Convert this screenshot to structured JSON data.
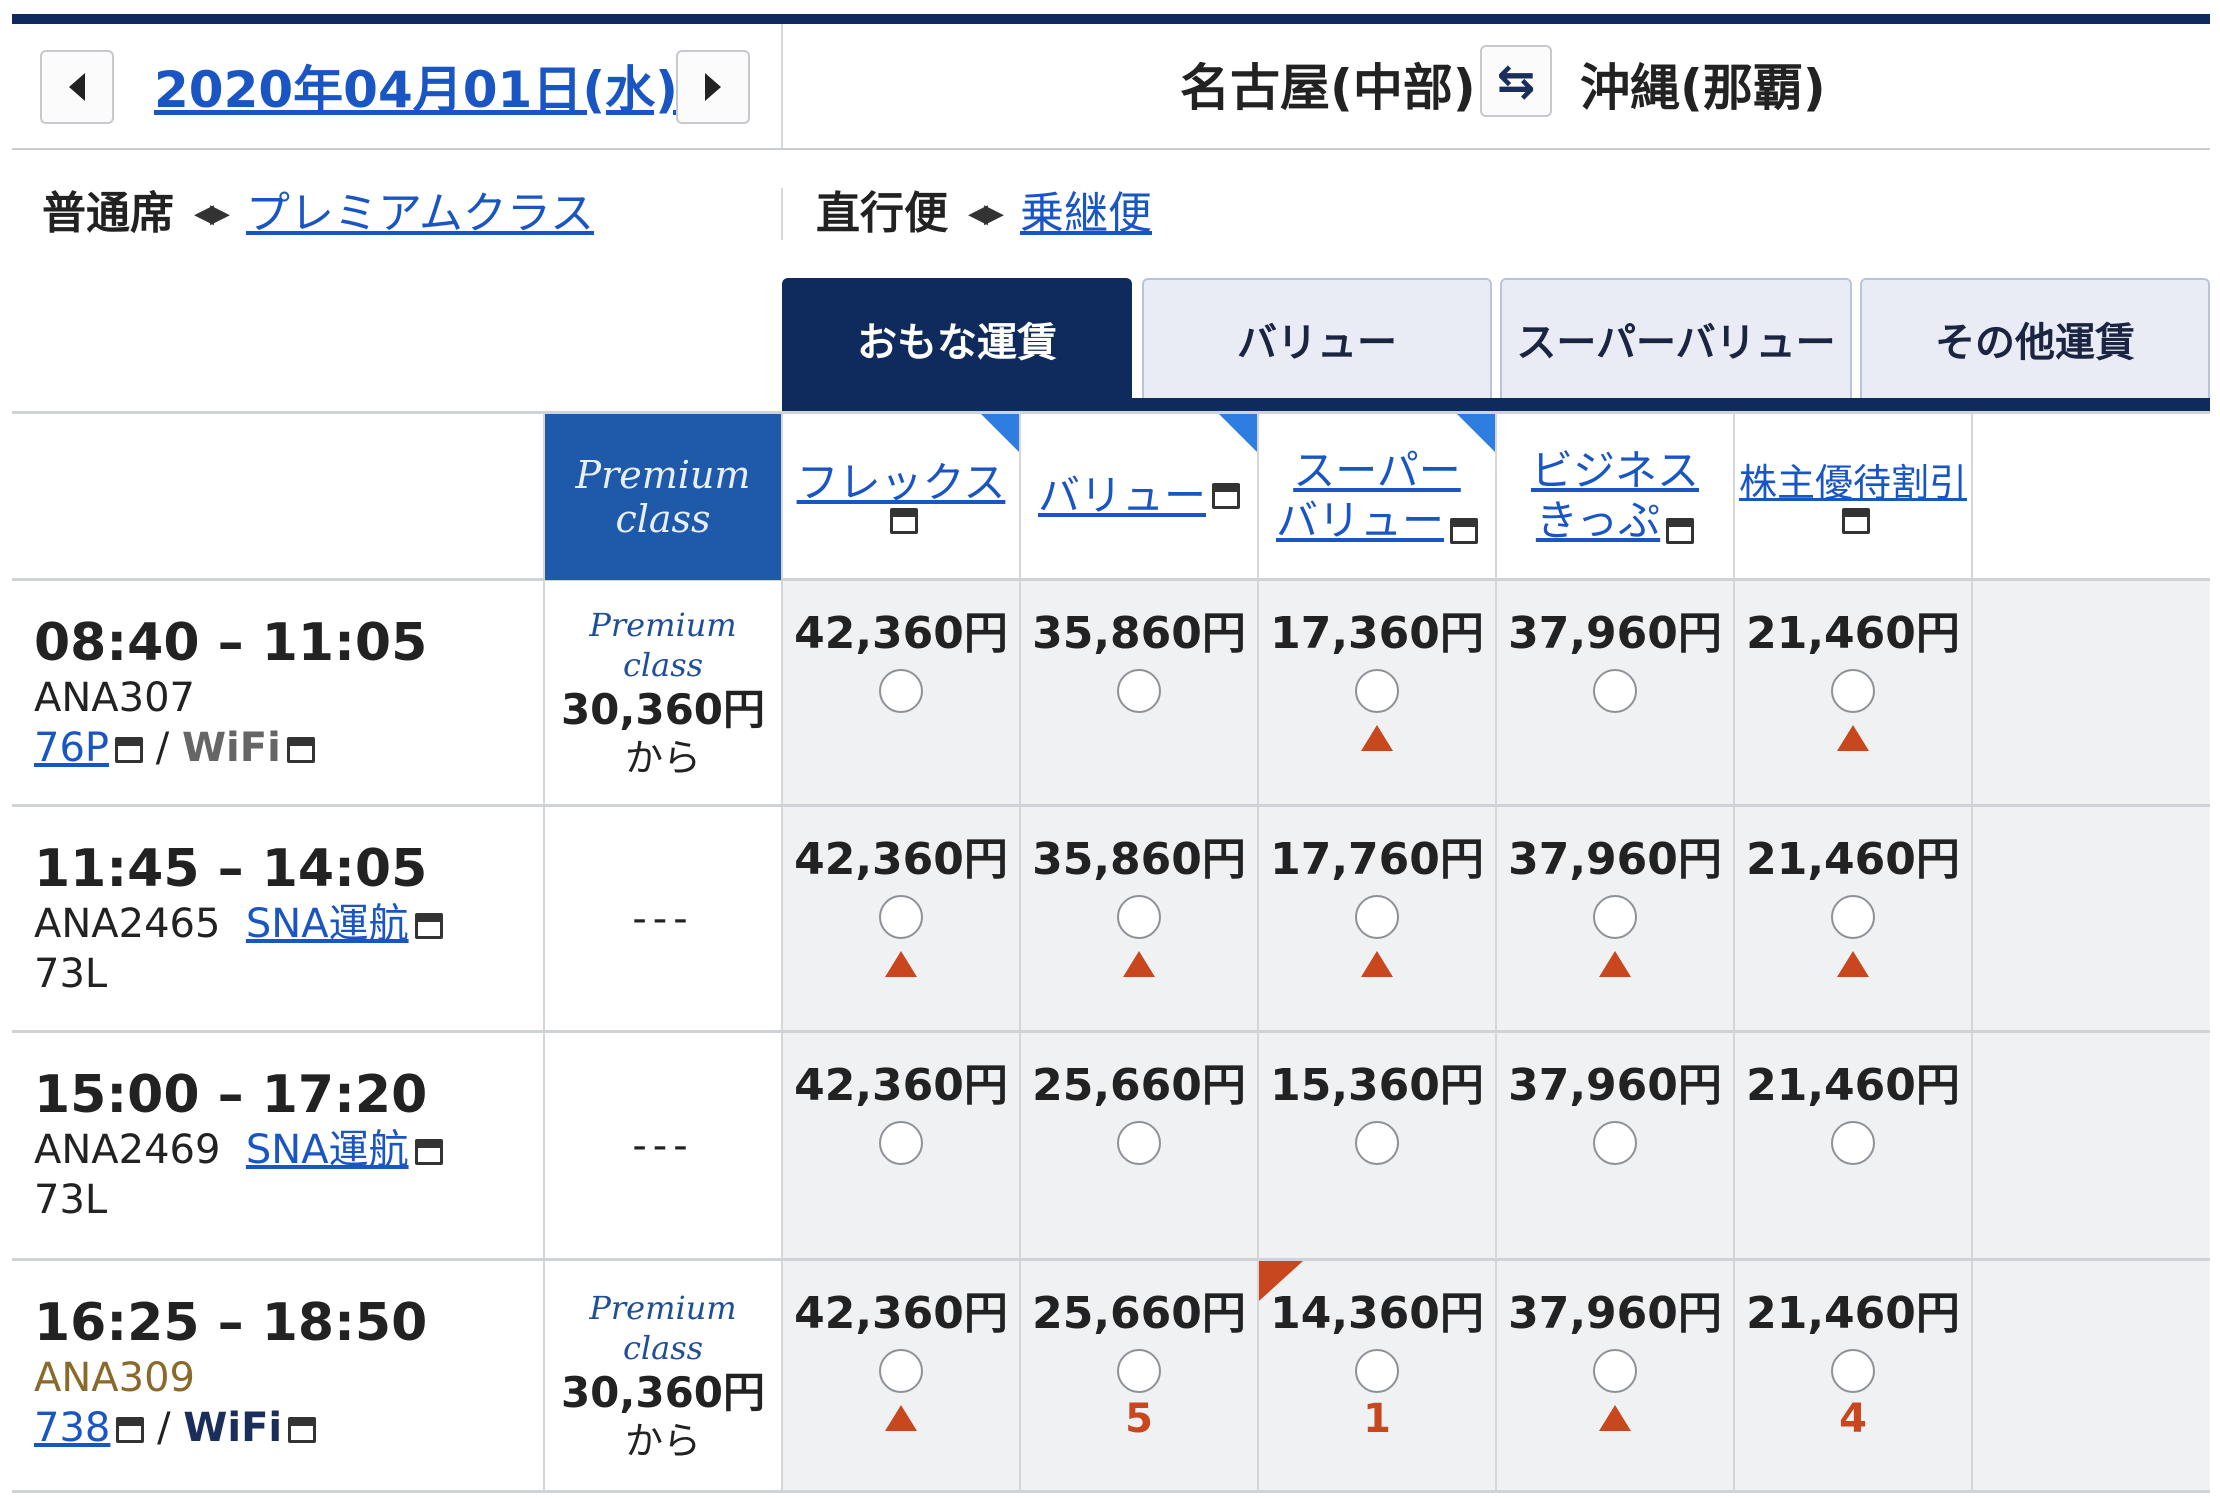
{
  "header": {
    "date": "2020年04月01日(水)",
    "origin": "名古屋(中部)",
    "destination": "沖縄(那覇)"
  },
  "toggles": {
    "class_current": "普通席",
    "class_alt": "プレミアムクラス",
    "route_current": "直行便",
    "route_alt": "乗継便"
  },
  "tabs": [
    "おもな運賃",
    "バリュー",
    "スーパーバリュー",
    "その他運賃"
  ],
  "columns": {
    "premium": [
      "Premium",
      "class"
    ],
    "fares": [
      {
        "line1": "フレックス",
        "line2": ""
      },
      {
        "line1": "バリュー",
        "line2": ""
      },
      {
        "line1": "スーパー",
        "line2": "バリュー"
      },
      {
        "line1": "ビジネス",
        "line2": "きっぷ"
      },
      {
        "line1": "株主優待割引",
        "line2": ""
      }
    ]
  },
  "flights": [
    {
      "time": "08:40 – 11:05",
      "flight_no": "ANA307",
      "operator": "",
      "aircraft": "76P",
      "wifi": "WiFi",
      "premium": {
        "logo": "Premium class",
        "price": "30,360円",
        "suffix": "から",
        "dash": ""
      },
      "fares": [
        {
          "price": "42,360円",
          "status": ""
        },
        {
          "price": "35,860円",
          "status": ""
        },
        {
          "price": "17,360円",
          "status": "warn"
        },
        {
          "price": "37,960円",
          "status": ""
        },
        {
          "price": "21,460円",
          "status": "warn"
        }
      ]
    },
    {
      "time": "11:45 – 14:05",
      "flight_no": "ANA2465",
      "operator": "SNA運航",
      "aircraft": "73L",
      "wifi": "",
      "premium": {
        "logo": "",
        "price": "",
        "suffix": "",
        "dash": "---"
      },
      "fares": [
        {
          "price": "42,360円",
          "status": "warn"
        },
        {
          "price": "35,860円",
          "status": "warn"
        },
        {
          "price": "17,760円",
          "status": "warn"
        },
        {
          "price": "37,960円",
          "status": "warn"
        },
        {
          "price": "21,460円",
          "status": "warn"
        }
      ]
    },
    {
      "time": "15:00 – 17:20",
      "flight_no": "ANA2469",
      "operator": "SNA運航",
      "aircraft": "73L",
      "wifi": "",
      "premium": {
        "logo": "",
        "price": "",
        "suffix": "",
        "dash": "---"
      },
      "fares": [
        {
          "price": "42,360円",
          "status": ""
        },
        {
          "price": "25,660円",
          "status": ""
        },
        {
          "price": "15,360円",
          "status": ""
        },
        {
          "price": "37,960円",
          "status": ""
        },
        {
          "price": "21,460円",
          "status": ""
        }
      ]
    },
    {
      "time": "16:25 – 18:50",
      "flight_no": "ANA309",
      "operator": "",
      "aircraft": "738",
      "wifi": "WiFi",
      "premium": {
        "logo": "Premium class",
        "price": "30,360円",
        "suffix": "から",
        "dash": ""
      },
      "fares": [
        {
          "price": "42,360円",
          "status": "warn"
        },
        {
          "price": "25,660円",
          "status": "5"
        },
        {
          "price": "14,360円",
          "status": "1"
        },
        {
          "price": "37,960円",
          "status": "warn"
        },
        {
          "price": "21,460円",
          "status": "4"
        }
      ]
    }
  ],
  "colors": {
    "navy": "#0f2a5c",
    "link": "#1a55c4",
    "premium_blue": "#1f5aaa",
    "warning": "#c9471f",
    "corner_blue": "#2e7de0"
  }
}
